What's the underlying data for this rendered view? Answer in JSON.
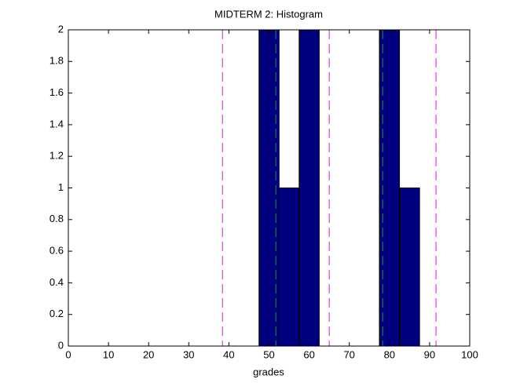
{
  "chart_data": {
    "type": "histogram",
    "title": "MIDTERM 2: Histogram",
    "x_label": "grades",
    "bins": [
      47.5,
      52.5,
      57.5,
      62.5,
      67.5,
      72.5,
      77.5,
      82.5,
      87.5
    ],
    "values": [
      2,
      1,
      2,
      0,
      0,
      0,
      2,
      1
    ],
    "color": "#00007f",
    "edge_color": "#000000",
    "reference_lines": [
      {
        "value": 38.4,
        "color": "#ff00ff"
      },
      {
        "value": 51.7,
        "color": "#00aa00"
      },
      {
        "value": 65.0,
        "color": "#ff00ff"
      },
      {
        "value": 78.3,
        "color": "#00aa00"
      },
      {
        "value": 91.6,
        "color": "#ff00ff"
      }
    ],
    "xlim": [
      0,
      100
    ],
    "xticks": [
      0,
      10,
      20,
      30,
      40,
      50,
      60,
      70,
      80,
      90,
      100
    ],
    "ylim": [
      0,
      2
    ],
    "yticks": [
      0,
      0.2,
      0.4,
      0.6,
      0.8,
      1,
      1.2,
      1.4,
      1.6,
      1.8,
      2
    ],
    "grid": false
  }
}
